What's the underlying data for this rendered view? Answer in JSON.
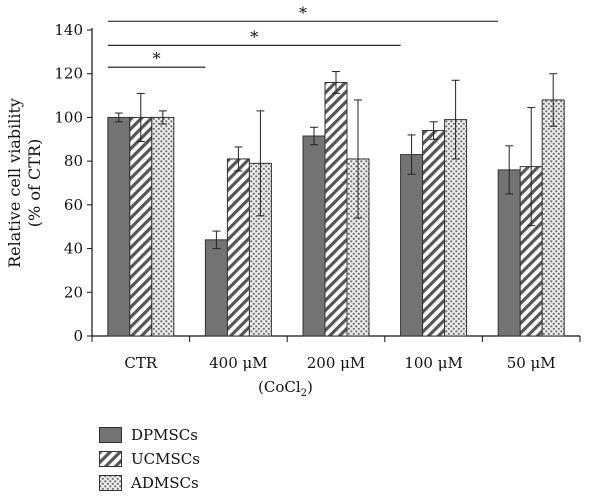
{
  "chart_data": {
    "type": "bar",
    "categories": [
      "CTR",
      "400 μM",
      "200 μM",
      "100 μM",
      "50 μM"
    ],
    "x_unit": {
      "prefix": "(CoCl",
      "subscript": "2",
      "suffix": ")"
    },
    "ylabel_line1": "Relative cell viability",
    "ylabel_line2": "(% of CTR)",
    "ylim": [
      0,
      140
    ],
    "yticks": [
      0,
      20,
      40,
      60,
      80,
      100,
      120,
      140
    ],
    "series": [
      {
        "name": "DPMSCs",
        "values": [
          100,
          44,
          91.5,
          83,
          76
        ],
        "errors": [
          2,
          4,
          4,
          9,
          11
        ]
      },
      {
        "name": "UCMSCs",
        "values": [
          100,
          81,
          116,
          94,
          77.5
        ],
        "errors": [
          11,
          5.5,
          5,
          4,
          27
        ]
      },
      {
        "name": "ADMSCs",
        "values": [
          100,
          79,
          81,
          99,
          108
        ],
        "errors": [
          3,
          24,
          27,
          18,
          12
        ]
      }
    ],
    "significance": [
      {
        "from": "CTR",
        "to": "400 μM",
        "y": 123,
        "label": "*"
      },
      {
        "from": "CTR",
        "to": "100 μM",
        "y": 133,
        "label": "*"
      },
      {
        "from": "CTR",
        "to": "50 μM",
        "y": 144,
        "label": "*"
      }
    ],
    "grid": false,
    "legend_position": "bottom-left",
    "colors": {
      "DPMSCs": "#737373",
      "UCMSCs": "hatch-diagonal",
      "ADMSCs": "dotted"
    }
  }
}
